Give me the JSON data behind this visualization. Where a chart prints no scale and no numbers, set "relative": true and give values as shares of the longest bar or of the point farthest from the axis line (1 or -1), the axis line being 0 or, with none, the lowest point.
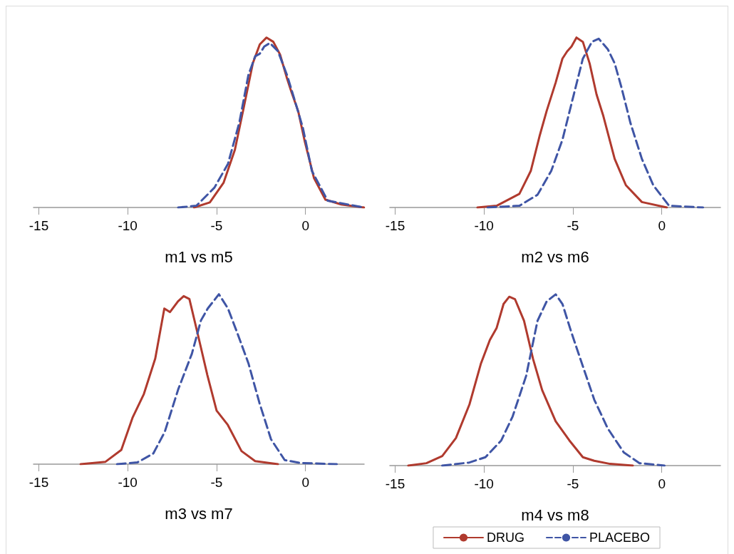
{
  "chart_data": [
    {
      "type": "line",
      "relative": true,
      "xlabel": "m1 vs m5",
      "xlim": [
        -15.3,
        3.3
      ],
      "xticks": [
        -15,
        -10,
        -5,
        0
      ],
      "series": [
        {
          "color": "#b03a2e",
          "line_style": "solid",
          "x": [
            -6.27,
            -5.38,
            -4.61,
            -3.97,
            -3.46,
            -2.96,
            -2.57,
            -2.19,
            -1.81,
            -1.43,
            -1.04,
            -0.79,
            -0.41,
            -0.03,
            0.48,
            1.12,
            2.01,
            3.29
          ],
          "values": [
            0,
            0.03,
            0.145,
            0.34,
            0.595,
            0.85,
            0.96,
            1.0,
            0.975,
            0.9,
            0.76,
            0.68,
            0.567,
            0.384,
            0.173,
            0.046,
            0.018,
            0
          ]
        },
        {
          "color": "#3f55a5",
          "line_style": "dashed",
          "x": [
            -7.16,
            -6.14,
            -5.12,
            -4.36,
            -3.72,
            -3.21,
            -2.83,
            -2.57,
            -2.32,
            -2.0,
            -1.55,
            -1.04,
            -0.66,
            -0.15,
            0.36,
            1.25,
            3.29
          ],
          "values": [
            0,
            0.01,
            0.117,
            0.257,
            0.5,
            0.78,
            0.89,
            0.905,
            0.947,
            0.968,
            0.92,
            0.78,
            0.65,
            0.47,
            0.215,
            0.04,
            0
          ]
        }
      ]
    },
    {
      "type": "line",
      "relative": true,
      "xlabel": "m2 vs m6",
      "xlim": [
        -15.3,
        3.3
      ],
      "xticks": [
        -15,
        -10,
        -5,
        0
      ],
      "series": [
        {
          "color": "#b03a2e",
          "line_style": "solid",
          "x": [
            -10.37,
            -9.29,
            -8.01,
            -7.37,
            -6.86,
            -6.48,
            -5.97,
            -5.59,
            -5.33,
            -5.08,
            -4.8,
            -4.44,
            -4.06,
            -3.67,
            -3.29,
            -2.65,
            -2.02,
            -1.12,
            0.28
          ],
          "values": [
            0,
            0.01,
            0.08,
            0.215,
            0.426,
            0.567,
            0.735,
            0.876,
            0.918,
            0.947,
            1.0,
            0.975,
            0.848,
            0.665,
            0.539,
            0.286,
            0.131,
            0.032,
            0
          ]
        },
        {
          "color": "#3f55a5",
          "line_style": "dashed",
          "x": [
            -9.8,
            -8.01,
            -6.99,
            -6.22,
            -5.59,
            -4.95,
            -4.44,
            -3.93,
            -3.55,
            -3.04,
            -2.65,
            -2.27,
            -1.76,
            -1.12,
            -0.48,
            0.41,
            2.32
          ],
          "values": [
            0,
            0.01,
            0.075,
            0.215,
            0.398,
            0.665,
            0.876,
            0.975,
            0.993,
            0.932,
            0.848,
            0.707,
            0.496,
            0.286,
            0.131,
            0.01,
            0
          ]
        }
      ]
    },
    {
      "type": "line",
      "relative": true,
      "xlabel": "m3 vs m7",
      "xlim": [
        -15.3,
        3.3
      ],
      "xticks": [
        -15,
        -10,
        -5,
        0
      ],
      "series": [
        {
          "color": "#b03a2e",
          "line_style": "solid",
          "x": [
            -12.65,
            -11.25,
            -10.36,
            -9.73,
            -9.09,
            -8.45,
            -7.94,
            -7.62,
            -7.17,
            -6.85,
            -6.53,
            -6.02,
            -5.52,
            -5.0,
            -4.37,
            -3.6,
            -2.83,
            -1.55
          ],
          "values": [
            0,
            0.014,
            0.084,
            0.273,
            0.413,
            0.622,
            0.916,
            0.895,
            0.958,
            0.989,
            0.972,
            0.748,
            0.524,
            0.315,
            0.231,
            0.077,
            0.018,
            0
          ]
        },
        {
          "color": "#3f55a5",
          "line_style": "dashed",
          "x": [
            -10.6,
            -9.46,
            -8.56,
            -7.92,
            -7.16,
            -6.39,
            -5.88,
            -5.5,
            -4.87,
            -4.36,
            -3.85,
            -3.21,
            -2.58,
            -1.94,
            -1.17,
            -0.28,
            1.76
          ],
          "values": [
            0,
            0.01,
            0.063,
            0.189,
            0.44,
            0.65,
            0.846,
            0.916,
            1.0,
            0.916,
            0.776,
            0.594,
            0.357,
            0.147,
            0.024,
            0.007,
            0
          ]
        }
      ]
    },
    {
      "type": "line",
      "relative": true,
      "xlabel": "m4 vs m8",
      "xlim": [
        -15.3,
        3.3
      ],
      "xticks": [
        -15,
        -10,
        -5,
        0
      ],
      "legend": "bottom",
      "series": [
        {
          "name": "DRUG",
          "color": "#b03a2e",
          "line_style": "solid",
          "x": [
            -14.26,
            -13.24,
            -12.35,
            -11.58,
            -10.82,
            -10.18,
            -9.67,
            -9.29,
            -8.9,
            -8.58,
            -8.26,
            -7.75,
            -7.24,
            -6.73,
            -5.97,
            -5.2,
            -4.44,
            -3.8,
            -2.91,
            -1.63
          ],
          "values": [
            0,
            0.014,
            0.056,
            0.161,
            0.357,
            0.594,
            0.734,
            0.804,
            0.944,
            0.986,
            0.972,
            0.846,
            0.622,
            0.441,
            0.259,
            0.147,
            0.049,
            0.028,
            0.01,
            0
          ]
        },
        {
          "name": "PLACEBO",
          "color": "#3f55a5",
          "line_style": "dashed",
          "x": [
            -12.35,
            -10.82,
            -9.92,
            -9.03,
            -8.39,
            -7.63,
            -6.99,
            -6.48,
            -5.97,
            -5.59,
            -5.08,
            -4.44,
            -3.8,
            -3.04,
            -2.14,
            -1.25,
            0.15
          ],
          "values": [
            0,
            0.018,
            0.049,
            0.147,
            0.287,
            0.524,
            0.846,
            0.958,
            1.0,
            0.944,
            0.776,
            0.58,
            0.385,
            0.217,
            0.077,
            0.014,
            0
          ]
        }
      ]
    }
  ]
}
